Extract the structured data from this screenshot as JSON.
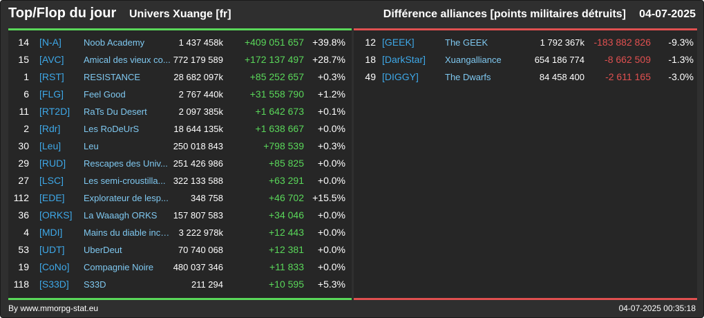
{
  "header": {
    "title": "Top/Flop du jour",
    "server": "Univers Xuange [fr]",
    "subject": "Différence alliances [points militaires détruits]",
    "date": "04-07-2025"
  },
  "colors": {
    "top_accent": "#5ad85a",
    "flop_accent": "#e05050",
    "tag": "#3ea8e8",
    "name": "#7fc8f0"
  },
  "top": [
    {
      "rank": "14",
      "tag": "[N-A]",
      "name": "Noob Academy",
      "points": "1 437 458k",
      "diff": "+409 051 657",
      "pct": "+39.8%"
    },
    {
      "rank": "15",
      "tag": "[AVC]",
      "name": "Amical des vieux co...",
      "points": "772 179 589",
      "diff": "+172 137 497",
      "pct": "+28.7%"
    },
    {
      "rank": "1",
      "tag": "[RST]",
      "name": "RESISTANCE",
      "points": "28 682 097k",
      "diff": "+85 252 657",
      "pct": "+0.3%"
    },
    {
      "rank": "6",
      "tag": "[FLG]",
      "name": "Feel Good",
      "points": "2 767 440k",
      "diff": "+31 558 790",
      "pct": "+1.2%"
    },
    {
      "rank": "11",
      "tag": "[RT2D]",
      "name": "RaTs Du Desert",
      "points": "2 097 385k",
      "diff": "+1 642 673",
      "pct": "+0.1%"
    },
    {
      "rank": "2",
      "tag": "[Rdr]",
      "name": "Les RoDeUrS",
      "points": "18 644 135k",
      "diff": "+1 638 667",
      "pct": "+0.0%"
    },
    {
      "rank": "30",
      "tag": "[Leu]",
      "name": "Leu",
      "points": "250 018 843",
      "diff": "+798 539",
      "pct": "+0.3%"
    },
    {
      "rank": "29",
      "tag": "[RUD]",
      "name": "Rescapes des Univ...",
      "points": "251 426 986",
      "diff": "+85 825",
      "pct": "+0.0%"
    },
    {
      "rank": "27",
      "tag": "[LSC]",
      "name": "Les semi-croustilla...",
      "points": "322 133 588",
      "diff": "+63 291",
      "pct": "+0.0%"
    },
    {
      "rank": "112",
      "tag": "[EDE]",
      "name": "Explorateur de lesp...",
      "points": "348 758",
      "diff": "+46 702",
      "pct": "+15.5%"
    },
    {
      "rank": "36",
      "tag": "[ORKS]",
      "name": "La Waaagh ORKS",
      "points": "157 807 583",
      "diff": "+34 046",
      "pct": "+0.0%"
    },
    {
      "rank": "4",
      "tag": "[MDI]",
      "name": "Mains du diable inco...",
      "points": "3 222 978k",
      "diff": "+12 443",
      "pct": "+0.0%"
    },
    {
      "rank": "53",
      "tag": "[UDT]",
      "name": "UberDeut",
      "points": "70 740 068",
      "diff": "+12 381",
      "pct": "+0.0%"
    },
    {
      "rank": "19",
      "tag": "[CoNo]",
      "name": "Compagnie Noire",
      "points": "480 037 346",
      "diff": "+11 833",
      "pct": "+0.0%"
    },
    {
      "rank": "118",
      "tag": "[S33D]",
      "name": "S33D",
      "points": "211 294",
      "diff": "+10 595",
      "pct": "+5.3%"
    }
  ],
  "flop": [
    {
      "rank": "12",
      "tag": "[GEEK]",
      "name": "The GEEK",
      "points": "1 792 367k",
      "diff": "-183 882 826",
      "pct": "-9.3%"
    },
    {
      "rank": "18",
      "tag": "[DarkStar]",
      "name": "Xuangalliance",
      "points": "654 186 774",
      "diff": "-8 662 509",
      "pct": "-1.3%"
    },
    {
      "rank": "49",
      "tag": "[DIGGY]",
      "name": "The Dwarfs",
      "points": "84 458 400",
      "diff": "-2 611 165",
      "pct": "-3.0%"
    }
  ],
  "footer": {
    "credit": "By www.mmorpg-stat.eu",
    "timestamp": "04-07-2025 00:35:18"
  }
}
